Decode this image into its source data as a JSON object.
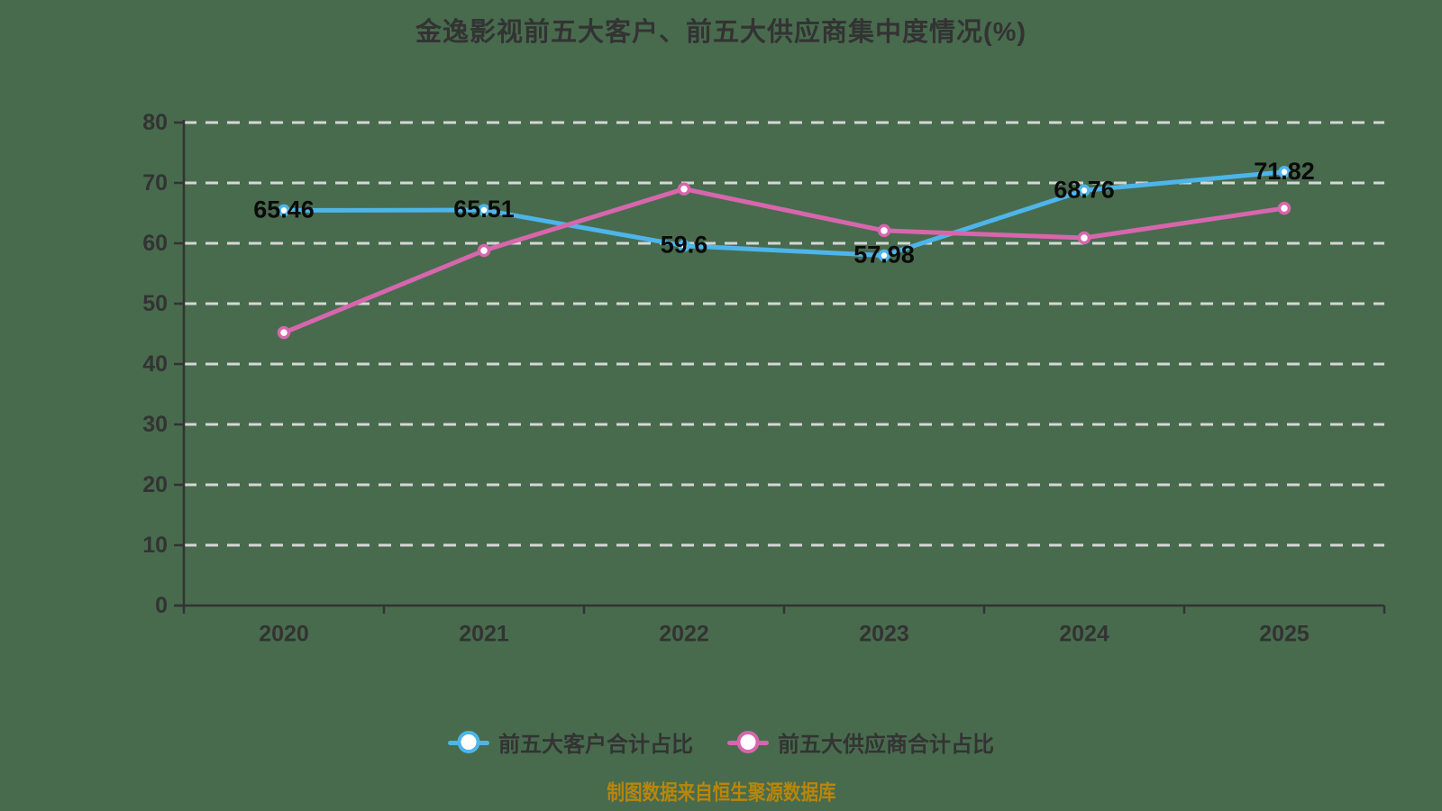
{
  "title": "金逸影视前五大客户、前五大供应商集中度情况(%)",
  "footer": "制图数据来自恒生聚源数据库",
  "colors": {
    "background": "#486b4e",
    "grid": "#d6d6d6",
    "axis": "#333333",
    "tick_text": "#333333",
    "data_label": "#0a0a0a",
    "customer_line": "#4db5ea",
    "supplier_line": "#d766ad",
    "marker_fill": "#ffffff",
    "footer_text": "#b8860b"
  },
  "legend": {
    "items": [
      {
        "label": "前五大客户合计占比",
        "color": "#4db5ea"
      },
      {
        "label": "前五大供应商合计占比",
        "color": "#d766ad"
      }
    ]
  },
  "chart_data": {
    "type": "line",
    "title": "金逸影视前五大客户、前五大供应商集中度情况(%)",
    "categories": [
      "2020",
      "2021",
      "2022",
      "2023",
      "2024",
      "2025"
    ],
    "series": [
      {
        "name": "前五大客户合计占比",
        "color": "#4db5ea",
        "values": [
          65.46,
          65.51,
          59.6,
          57.98,
          68.76,
          71.82
        ],
        "labels": [
          "65.46",
          "65.51",
          "59.6",
          "57.98",
          "68.76",
          "71.82"
        ],
        "show_labels": true,
        "marker_radius": 5
      },
      {
        "name": "前五大供应商合计占比",
        "color": "#d766ad",
        "values": [
          45.2,
          58.8,
          69.0,
          62.1,
          60.9,
          65.8
        ],
        "labels": [],
        "show_labels": false,
        "marker_radius": 5.5
      }
    ],
    "ylim": [
      0,
      80
    ],
    "ytick_interval": 10,
    "yticks": [
      0,
      10,
      20,
      30,
      40,
      50,
      60,
      70,
      80
    ],
    "grid": "horizontal-dashed",
    "legend_position": "bottom"
  }
}
